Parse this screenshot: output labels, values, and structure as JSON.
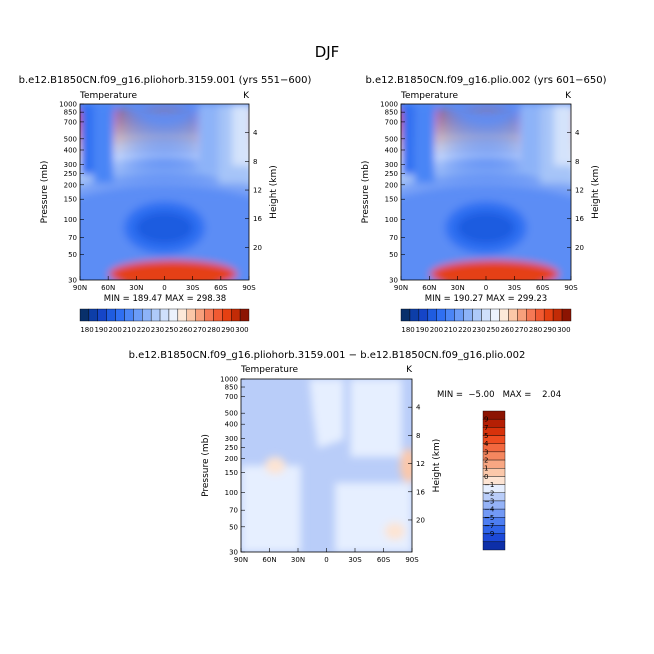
{
  "page_title": "DJF",
  "panels": [
    {
      "title": "b.e12.B1850CN.f09_g16.pliohorb.3159.001 (yrs 551−600)",
      "left_label": "Temperature",
      "right_label": "K",
      "min_max": "MIN = 189.47   MAX = 298.38"
    },
    {
      "title": "b.e12.B1850CN.f09_g16.plio.002 (yrs 601−650)",
      "left_label": "Temperature",
      "right_label": "K",
      "min_max": "MIN = 190.27   MAX = 299.23"
    },
    {
      "title": "b.e12.B1850CN.f09_g16.pliohorb.3159.001 − b.e12.B1850CN.f09_g16.plio.002",
      "left_label": "Temperature",
      "right_label": "K",
      "min_max": "MIN =  −5.00   MAX =    2.04"
    }
  ],
  "colorbar_top": {
    "labels": [
      "180",
      "190",
      "200",
      "210",
      "220",
      "230",
      "250",
      "260",
      "270",
      "280",
      "290",
      "300"
    ],
    "colors": [
      "#08306b",
      "#0d3ea8",
      "#1545c8",
      "#1f5ce0",
      "#2f6ff2",
      "#4a85f6",
      "#6b9cf7",
      "#8db3f8",
      "#aecaf9",
      "#cfe0fb",
      "#ecf2fd",
      "#fde9d9",
      "#fbc7a8",
      "#f8a07c",
      "#f57955",
      "#f15a32",
      "#e54012",
      "#c22b06",
      "#8c1402"
    ]
  },
  "colorbar_diff": {
    "labels": [
      "9",
      "7",
      "5",
      "4",
      "3",
      "2",
      "1",
      "0",
      "−1",
      "−2",
      "−3",
      "−4",
      "−5",
      "−7",
      "−9"
    ],
    "colors": [
      "#8c1402",
      "#b51f04",
      "#d7320b",
      "#ee4c20",
      "#f2683f",
      "#f5875f",
      "#f8a783",
      "#fbc8aa",
      "#fde4d3",
      "#e6efff",
      "#b9cdf9",
      "#95b3f7",
      "#7299f5",
      "#4d7ef2",
      "#2f64ea",
      "#1c49d8",
      "#0d2fa8"
    ]
  },
  "chart_data": [
    {
      "type": "heatmap",
      "title": "b.e12.B1850CN.f09_g16.pliohorb.3159.001 (yrs 551−600)",
      "variable": "Temperature",
      "units": "K",
      "xlabel": "",
      "ylabel": "Pressure (mb)",
      "y2label": "Height (km)",
      "x_ticks": [
        "90N",
        "60N",
        "30N",
        "0",
        "30S",
        "60S",
        "90S"
      ],
      "y_ticks": [
        30,
        50,
        70,
        100,
        150,
        200,
        250,
        300,
        400,
        500,
        700,
        850,
        1000
      ],
      "y2_ticks": [
        4,
        8,
        12,
        16,
        20
      ],
      "y_scale": "log",
      "ylim": [
        1000,
        30
      ],
      "x_dir": "north-to-south",
      "min": 189.47,
      "max": 298.38,
      "levels": [
        180,
        190,
        200,
        210,
        220,
        230,
        240,
        250,
        260,
        270,
        280,
        290,
        300
      ]
    },
    {
      "type": "heatmap",
      "title": "b.e12.B1850CN.f09_g16.plio.002 (yrs 601−650)",
      "variable": "Temperature",
      "units": "K",
      "xlabel": "",
      "ylabel": "Pressure (mb)",
      "y2label": "Height (km)",
      "x_ticks": [
        "90N",
        "60N",
        "30N",
        "0",
        "30S",
        "60S",
        "90S"
      ],
      "y_ticks": [
        30,
        50,
        70,
        100,
        150,
        200,
        250,
        300,
        400,
        500,
        700,
        850,
        1000
      ],
      "y2_ticks": [
        4,
        8,
        12,
        16,
        20
      ],
      "y_scale": "log",
      "ylim": [
        1000,
        30
      ],
      "x_dir": "north-to-south",
      "min": 190.27,
      "max": 299.23,
      "levels": [
        180,
        190,
        200,
        210,
        220,
        230,
        240,
        250,
        260,
        270,
        280,
        290,
        300
      ]
    },
    {
      "type": "heatmap",
      "title": "b.e12.B1850CN.f09_g16.pliohorb.3159.001 − b.e12.B1850CN.f09_g16.plio.002",
      "variable": "Temperature",
      "units": "K",
      "xlabel": "",
      "ylabel": "Pressure (mb)",
      "y2label": "Height (km)",
      "x_ticks": [
        "90N",
        "60N",
        "30N",
        "0",
        "30S",
        "60S",
        "90S"
      ],
      "y_ticks": [
        30,
        50,
        70,
        100,
        150,
        200,
        250,
        300,
        400,
        500,
        700,
        850,
        1000
      ],
      "y2_ticks": [
        4,
        8,
        12,
        16,
        20
      ],
      "y_scale": "log",
      "ylim": [
        1000,
        30
      ],
      "x_dir": "north-to-south",
      "min": -5.0,
      "max": 2.04,
      "levels": [
        -9,
        -7,
        -5,
        -4,
        -3,
        -2,
        -1,
        0,
        1,
        2,
        3,
        4,
        5,
        7,
        9
      ]
    }
  ]
}
